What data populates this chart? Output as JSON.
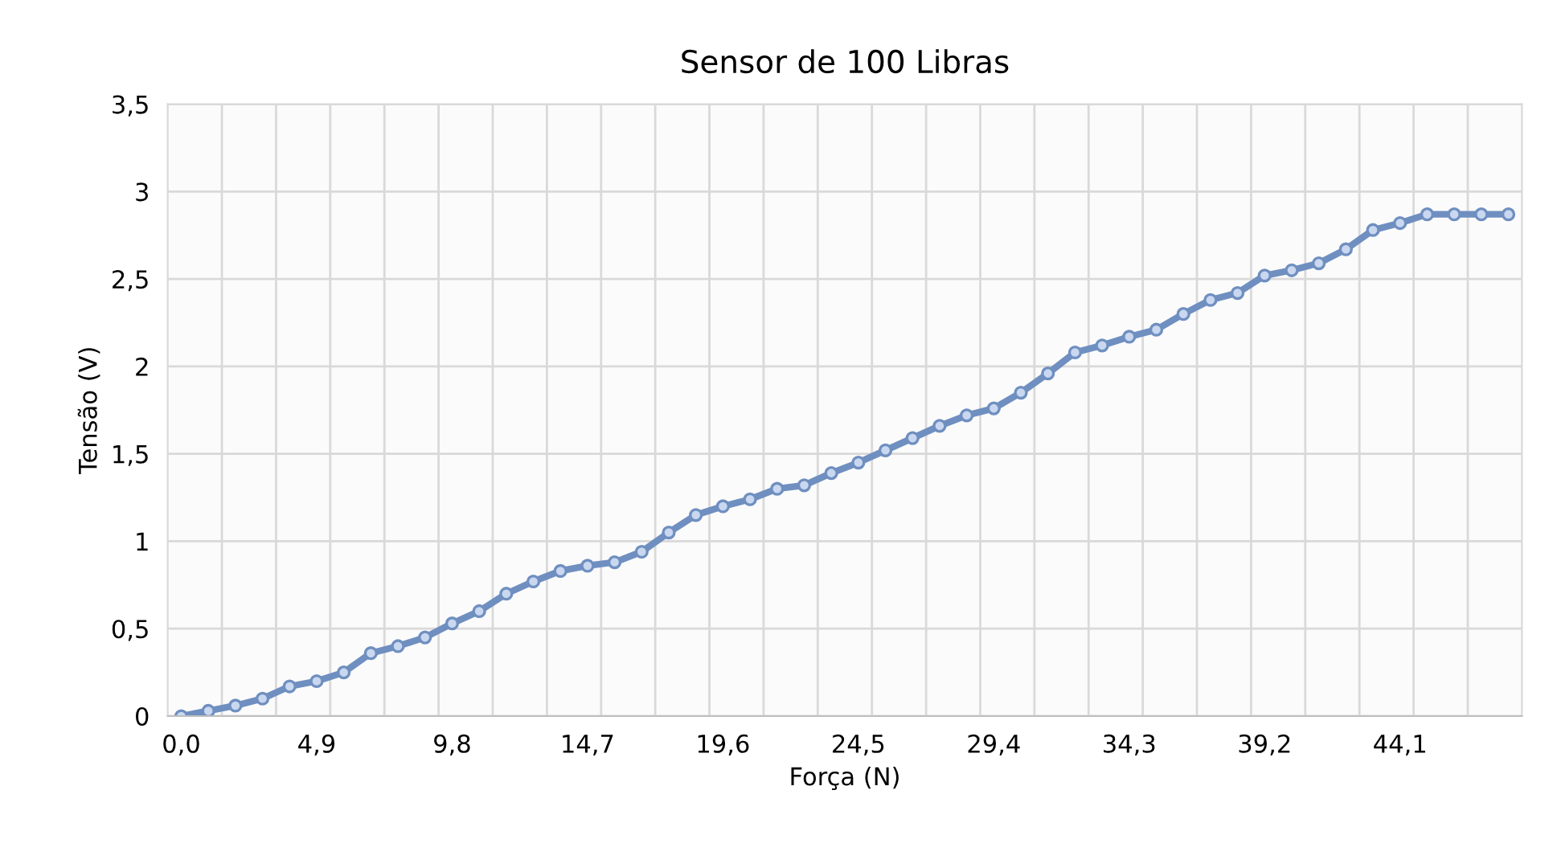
{
  "chart_data": {
    "type": "line",
    "title": "Sensor de 100 Libras",
    "xlabel": "Força (N)",
    "ylabel": "Tensão (V)",
    "categories": [
      "0,0",
      null,
      null,
      null,
      null,
      "4,9",
      null,
      null,
      null,
      null,
      "9,8",
      null,
      null,
      null,
      null,
      "14,7",
      null,
      null,
      null,
      null,
      "19,6",
      null,
      null,
      null,
      null,
      "24,5",
      null,
      null,
      null,
      null,
      "29,4",
      null,
      null,
      null,
      null,
      "34,3",
      null,
      null,
      null,
      null,
      "39,2",
      null,
      null,
      null,
      null,
      "44,1",
      null,
      null,
      null,
      null
    ],
    "series": [
      {
        "color": "#6f8fc0",
        "values": [
          0,
          0.03,
          0.06,
          0.1,
          0.17,
          0.2,
          0.25,
          0.36,
          0.4,
          0.45,
          0.53,
          0.6,
          0.7,
          0.77,
          0.83,
          0.86,
          0.88,
          0.94,
          1.05,
          1.15,
          1.2,
          1.24,
          1.3,
          1.32,
          1.39,
          1.45,
          1.52,
          1.59,
          1.66,
          1.72,
          1.76,
          1.85,
          1.96,
          2.08,
          2.12,
          2.17,
          2.21,
          2.3,
          2.38,
          2.42,
          2.52,
          2.55,
          2.59,
          2.67,
          2.78,
          2.82,
          2.87,
          2.87,
          2.87,
          2.87
        ]
      }
    ],
    "ylim": [
      0,
      3.5
    ],
    "yticks": [
      0,
      {
        "value": 0.5,
        "label": "0,5"
      },
      1,
      {
        "value": 1.5,
        "label": "1,5"
      },
      2,
      {
        "value": 2.5,
        "label": "2,5"
      },
      3,
      {
        "value": 3.5,
        "label": "3,5"
      }
    ],
    "grid": true,
    "marker": "circle",
    "line_style": "solid"
  }
}
